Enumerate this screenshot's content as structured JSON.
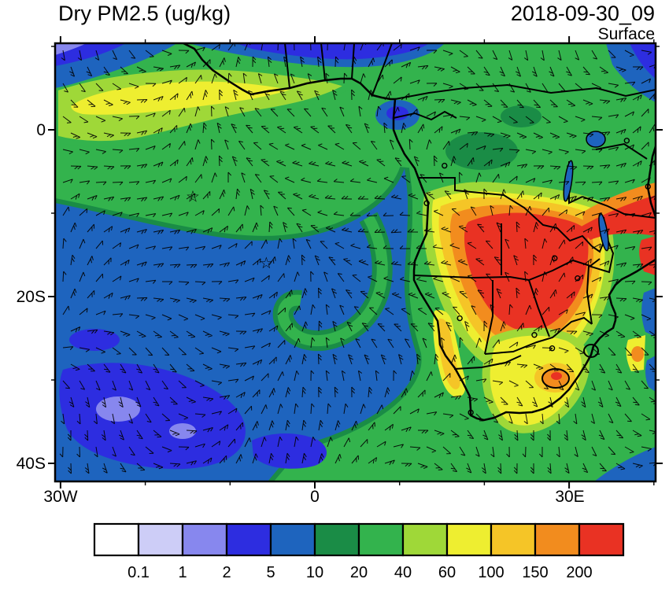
{
  "header": {
    "title": "Dry PM2.5 (ug/kg)",
    "datetime": "2018-09-30_09",
    "level": "Surface"
  },
  "axes": {
    "y_ticks": [
      {
        "label": "0",
        "lat": 0
      },
      {
        "label": "20S",
        "lat": -20
      },
      {
        "label": "40S",
        "lat": -40
      }
    ],
    "x_ticks": [
      {
        "label": "30W",
        "lon": -30
      },
      {
        "label": "0",
        "lon": 0
      },
      {
        "label": "30E",
        "lon": 30
      }
    ]
  },
  "colorbar": {
    "units": "ug/kg",
    "levels": [
      "0.1",
      "1",
      "2",
      "5",
      "10",
      "20",
      "40",
      "60",
      "100",
      "150",
      "200"
    ],
    "colors": [
      "#ffffff",
      "#cdcdf7",
      "#8787ee",
      "#2d2de0",
      "#1e64be",
      "#1a8c46",
      "#33b34d",
      "#9fd838",
      "#eeee30",
      "#f5c527",
      "#f28c1e",
      "#e93223"
    ]
  },
  "chart_data": {
    "type": "heatmap",
    "subtype": "filled-contour map with wind barbs, coastlines and country borders",
    "title": "Dry PM2.5 (ug/kg)",
    "valid_time": "2018-09-30_09",
    "level": "Surface",
    "projection": "cylindrical lat-lon, southern Africa / tropical Atlantic",
    "lon_range": [
      -30.6,
      40.2
    ],
    "lat_range": [
      -42.2,
      10.4
    ],
    "contour_levels": [
      0.1,
      1,
      2,
      5,
      10,
      20,
      40,
      60,
      100,
      150,
      200
    ],
    "palette": [
      "#ffffff",
      "#cdcdf7",
      "#8787ee",
      "#2d2de0",
      "#1e64be",
      "#1a8c46",
      "#33b34d",
      "#9fd838",
      "#eeee30",
      "#f5c527",
      "#f28c1e",
      "#e93223"
    ],
    "overlays": [
      "wind-barbs",
      "coastlines",
      "country-borders",
      "lakes",
      "city-markers",
      "star-markers"
    ],
    "station_markers": [
      {
        "symbol": "star",
        "lon": -14.4,
        "lat": -7.95
      },
      {
        "symbol": "star",
        "lon": -5.72,
        "lat": -15.96
      }
    ],
    "city_markers": [
      {
        "lon": 15.3,
        "lat": -4.3
      },
      {
        "lon": 13.2,
        "lat": -8.8
      },
      {
        "lon": 28.3,
        "lat": -15.4
      },
      {
        "lon": 31.0,
        "lat": -17.8
      },
      {
        "lon": 17.1,
        "lat": -22.6
      },
      {
        "lon": 28.0,
        "lat": -26.2
      },
      {
        "lon": 18.4,
        "lat": -33.9
      },
      {
        "lon": 39.3,
        "lat": -6.8
      },
      {
        "lon": 36.8,
        "lat": -1.3
      },
      {
        "lon": 25.9,
        "lat": -24.6
      }
    ],
    "regions": [
      {
        "region": "south-central Africa burning core (Angola-Zambia-southern DRC-Zimbabwe)",
        "pm25_ugkg": ">200"
      },
      {
        "region": "halo around burning core and Mozambique coast",
        "pm25_ugkg": "60-200"
      },
      {
        "region": "eastern South Africa / Lesotho secondary maximum",
        "pm25_ugkg": "60-150"
      },
      {
        "region": "Namibia coastal strip",
        "pm25_ugkg": "60-150"
      },
      {
        "region": "biomass smoke plume off Gulf of Guinea into tropical Atlantic",
        "pm25_ugkg": "40-100"
      },
      {
        "region": "equatorial Atlantic and Congo basin background",
        "pm25_ugkg": "10-40"
      },
      {
        "region": "subtropical South Atlantic",
        "pm25_ugkg": "2-10"
      },
      {
        "region": "far southwest ocean clean patches",
        "pm25_ugkg": "0.1-2"
      }
    ]
  }
}
